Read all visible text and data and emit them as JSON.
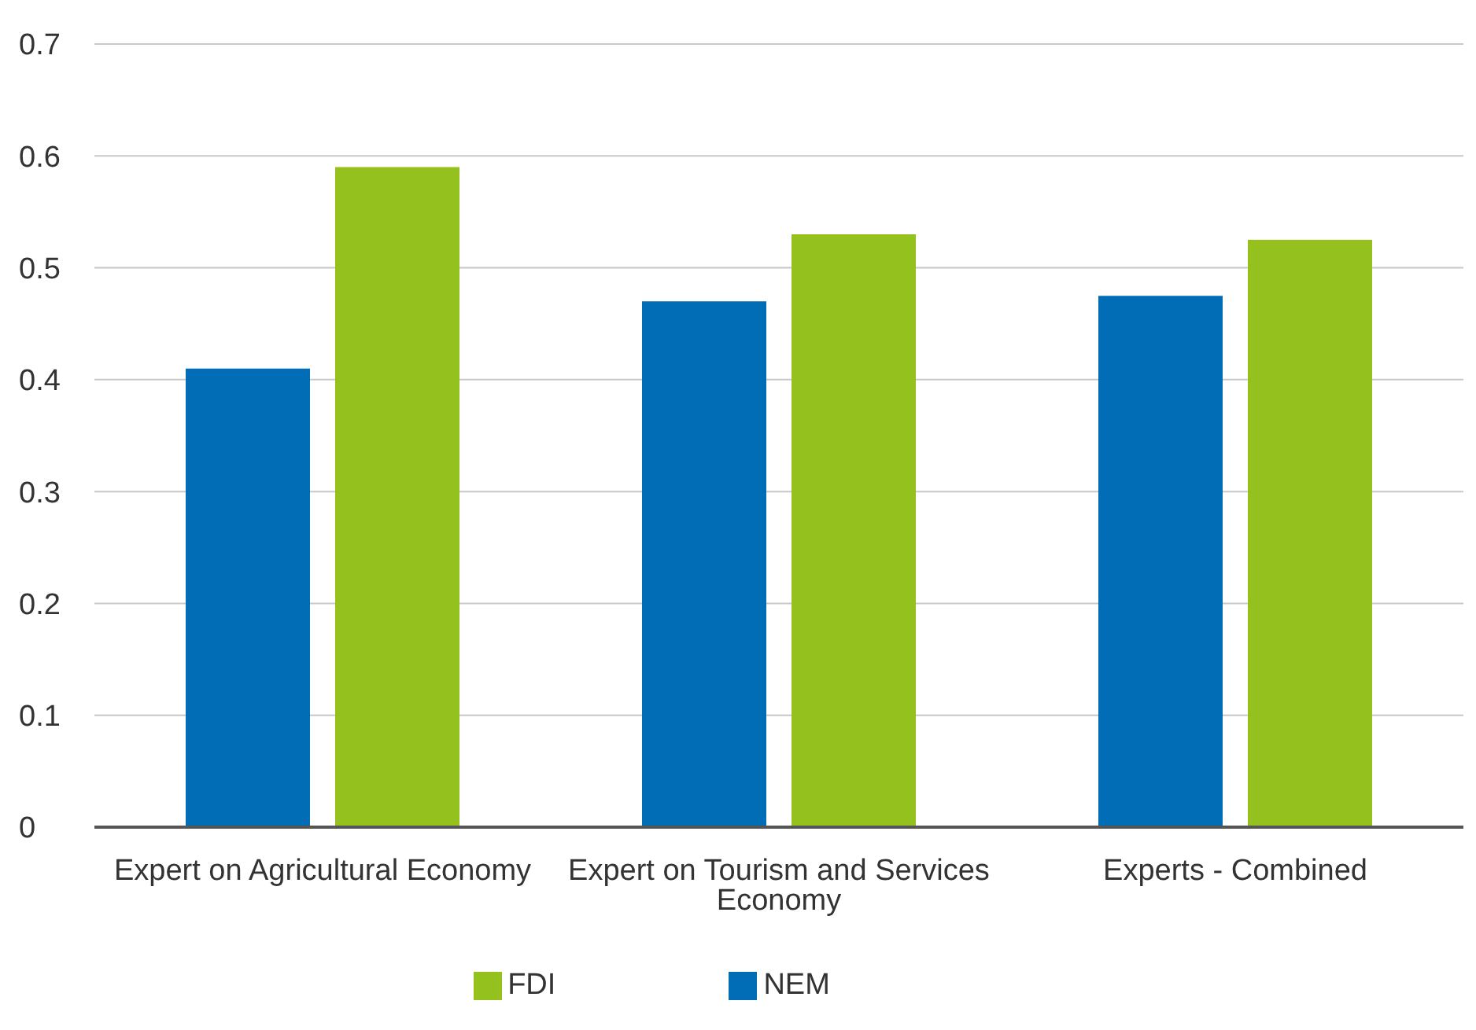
{
  "chart_data": {
    "type": "bar",
    "categories": [
      "Expert on Agricultural Economy",
      "Expert on Tourism and Services Economy",
      "Experts - Combined"
    ],
    "series": [
      {
        "name": "NEM",
        "color": "#006db6",
        "values": [
          0.41,
          0.47,
          0.475
        ]
      },
      {
        "name": "FDI",
        "color": "#95c11f",
        "values": [
          0.59,
          0.53,
          0.525
        ]
      }
    ],
    "ylim": [
      0,
      0.7
    ],
    "yticks": [
      0,
      0.1,
      0.2,
      0.3,
      0.4,
      0.5,
      0.6,
      0.7
    ],
    "grid": "y",
    "legend": "bottom"
  }
}
